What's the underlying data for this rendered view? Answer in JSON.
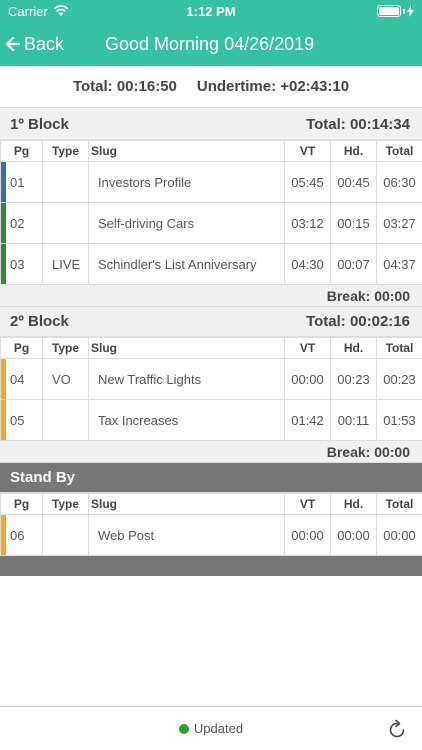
{
  "status_bar": {
    "carrier": "Carrier",
    "time": "1:12 PM"
  },
  "nav": {
    "back_label": "Back",
    "title": "Good Morning 04/26/2019"
  },
  "summary": {
    "total": "Total: 00:16:50",
    "undertime": "Undertime: +02:43:10"
  },
  "columns": {
    "pg": "Pg",
    "type": "Type",
    "slug": "Slug",
    "vt": "VT",
    "hd": "Hd.",
    "total": "Total"
  },
  "blocks": [
    {
      "name": "1º Block",
      "total": "Total: 00:14:34",
      "break": "Break: 00:00",
      "rows": [
        {
          "pg": "01",
          "type": "",
          "slug": "Investors Profile",
          "vt": "05:45",
          "hd": "00:45",
          "total": "06:30",
          "color": "#3c6fa5"
        },
        {
          "pg": "02",
          "type": "",
          "slug": "Self-driving Cars",
          "vt": "03:12",
          "hd": "00:15",
          "total": "03:27",
          "color": "#2e8b3a"
        },
        {
          "pg": "03",
          "type": "LIVE",
          "slug": "Schindler's List Anniversary",
          "vt": "04:30",
          "hd": "00:07",
          "total": "04:37",
          "color": "#2e8b3a"
        }
      ]
    },
    {
      "name": "2º Block",
      "total": "Total: 00:02:16",
      "break": "Break: 00:00",
      "rows": [
        {
          "pg": "04",
          "type": "VO",
          "slug": "New Traffic Lights",
          "vt": "00:00",
          "hd": "00:23",
          "total": "00:23",
          "color": "#f5a623"
        },
        {
          "pg": "05",
          "type": "",
          "slug": "Tax Increases",
          "vt": "01:42",
          "hd": "00:11",
          "total": "01:53",
          "color": "#f5a623"
        }
      ]
    },
    {
      "name": "Stand By",
      "rows": [
        {
          "pg": "06",
          "type": "",
          "slug": "Web Post",
          "vt": "00:00",
          "hd": "00:00",
          "total": "00:00",
          "color": "#f5a623"
        }
      ]
    }
  ],
  "footer": {
    "status": "Updated",
    "status_color": "#2ca02c"
  },
  "colors": {
    "accent": "#36c1a0",
    "standby_header": "#777777"
  }
}
